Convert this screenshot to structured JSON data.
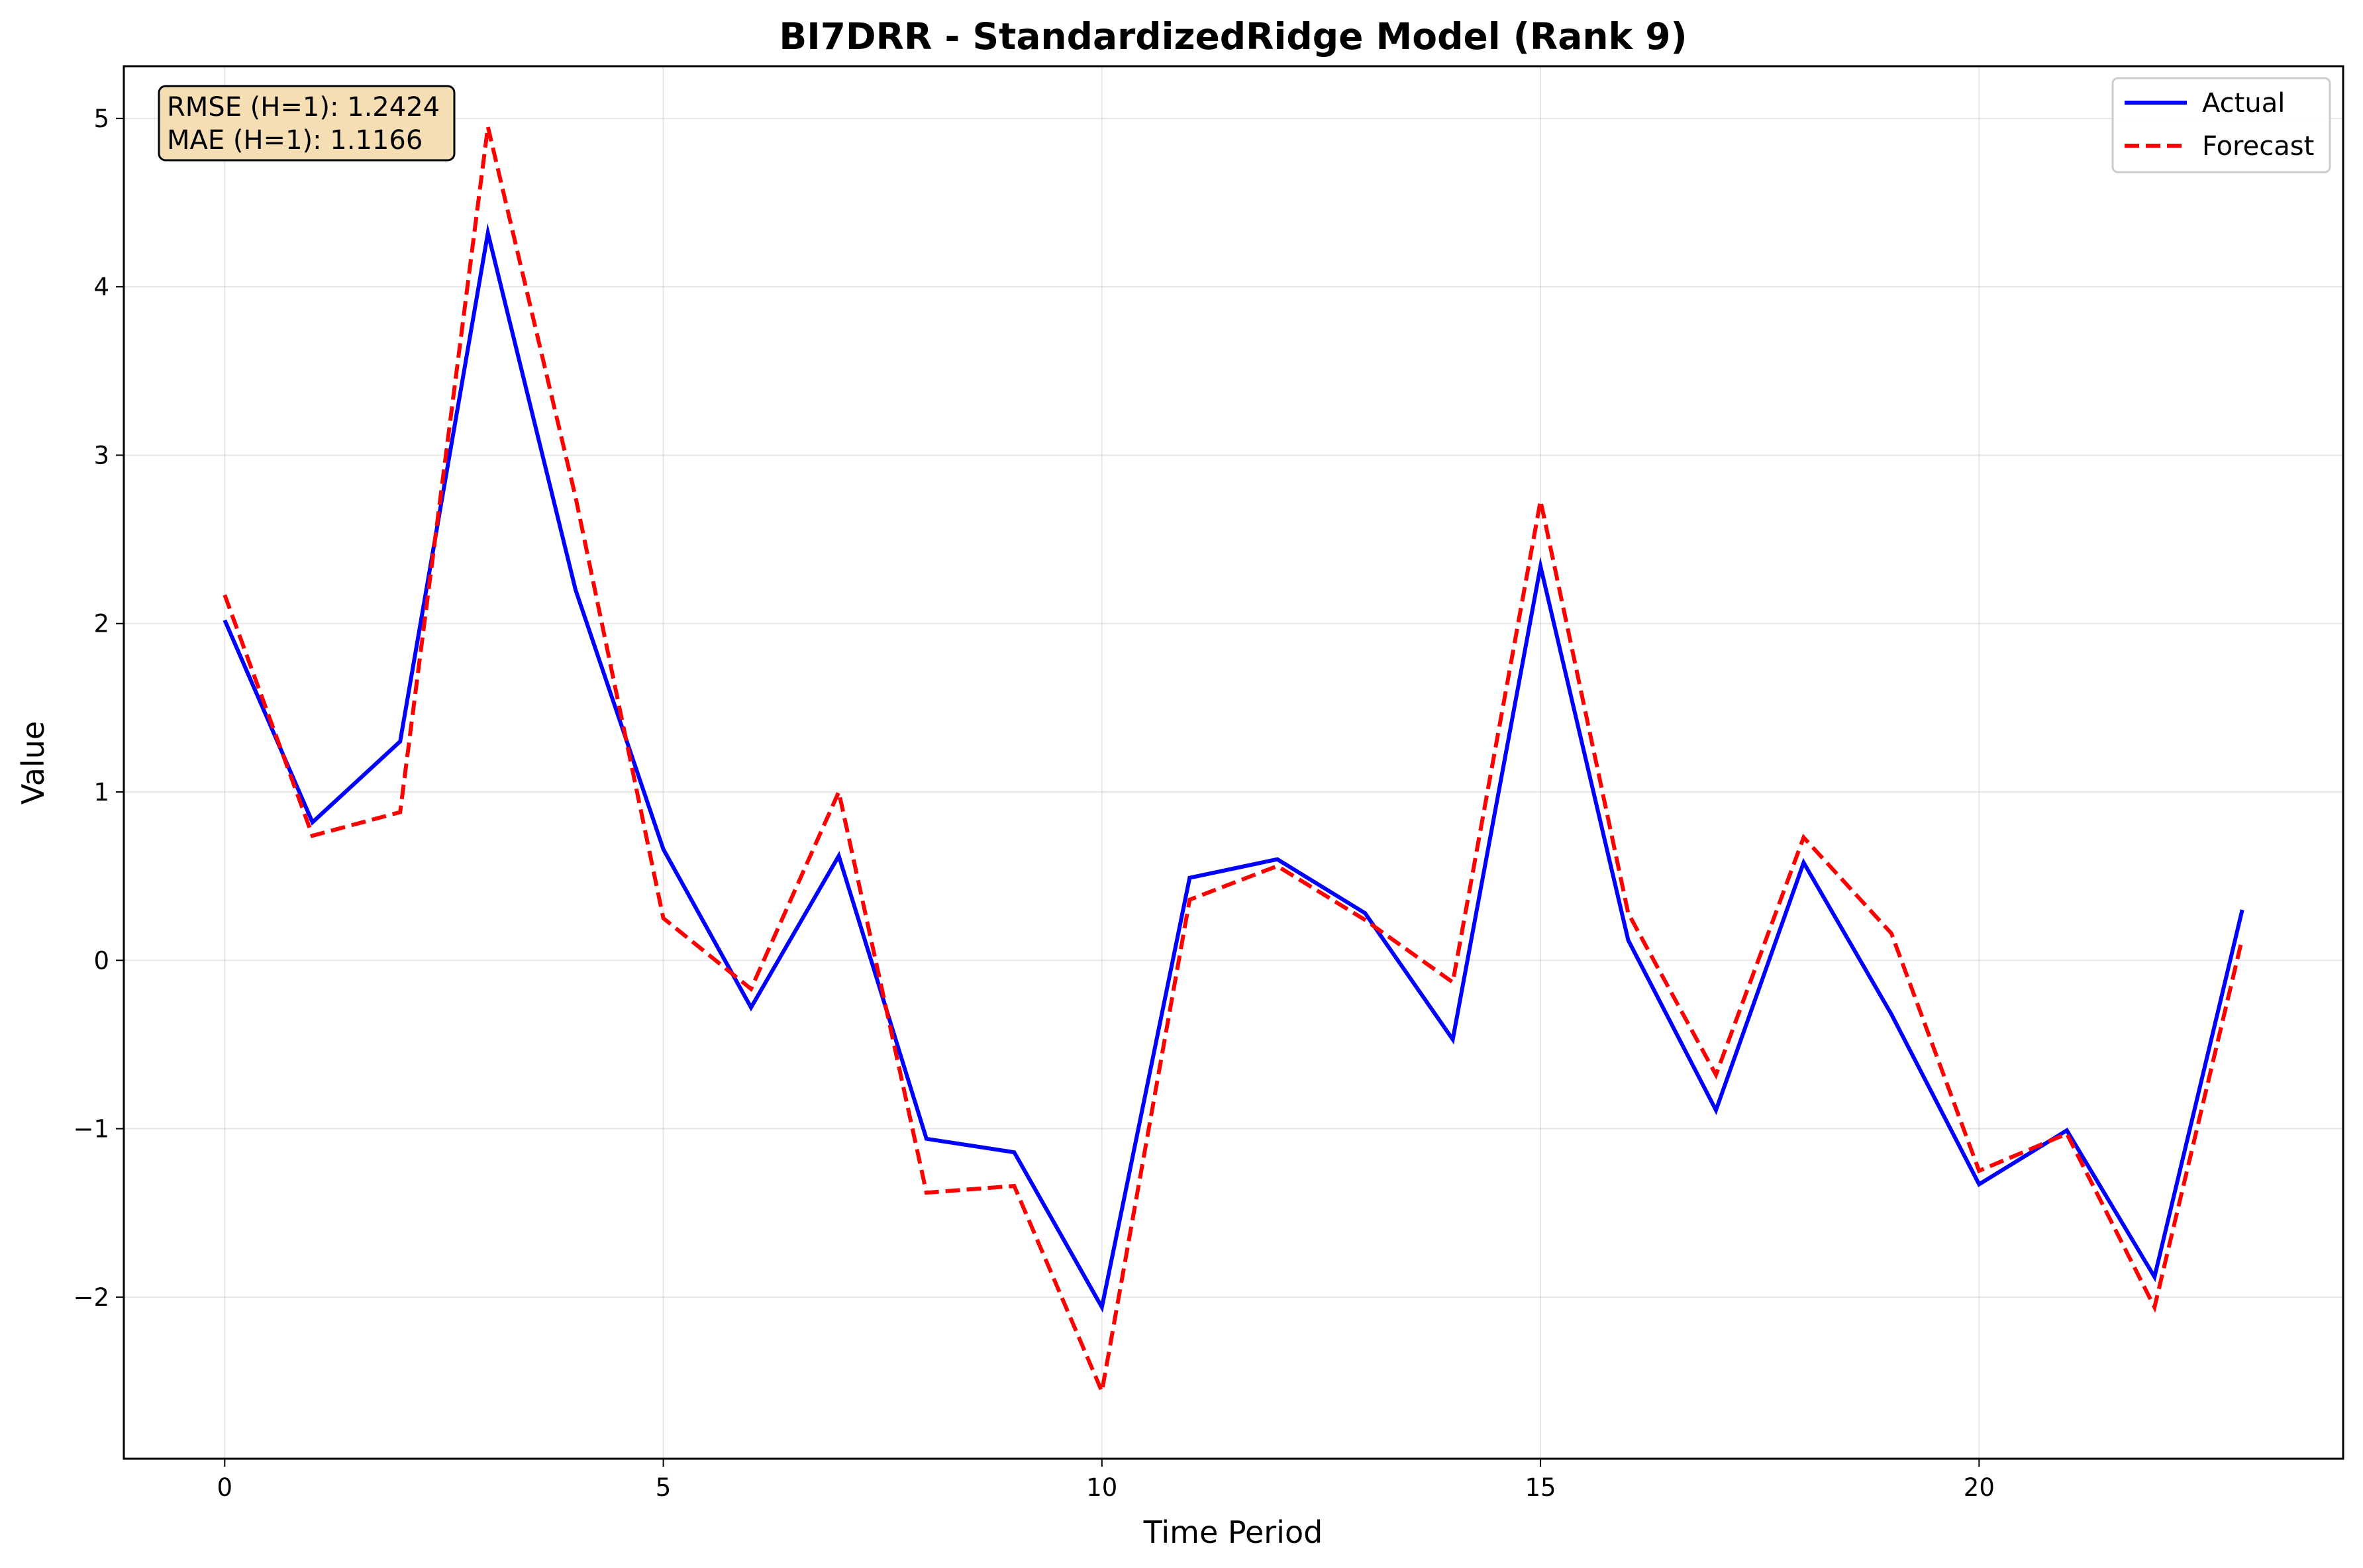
{
  "chart_data": {
    "type": "line",
    "title": "BI7DRR - StandardizedRidge Model (Rank 9)",
    "xlabel": "Time Period",
    "ylabel": "Value",
    "xlim": [
      -1.15,
      24.15
    ],
    "ylim": [
      -2.96,
      5.31
    ],
    "grid": true,
    "legend_position": "top-right",
    "x_ticks": [
      0,
      5,
      10,
      15,
      20
    ],
    "y_ticks": [
      -2,
      -1,
      0,
      1,
      2,
      3,
      4,
      5
    ],
    "x_tick_labels": [
      "0",
      "5",
      "10",
      "15",
      "20"
    ],
    "y_tick_labels": [
      "−2",
      "−1",
      "0",
      "1",
      "2",
      "3",
      "4",
      "5"
    ],
    "x": [
      0,
      1,
      2,
      3,
      4,
      5,
      6,
      7,
      8,
      9,
      10,
      11,
      12,
      13,
      14,
      15,
      16,
      17,
      18,
      19,
      20,
      21,
      22,
      23
    ],
    "series": [
      {
        "name": "Actual",
        "color": "#0000ff",
        "style": "solid",
        "values": [
          2.02,
          0.82,
          1.3,
          4.32,
          2.2,
          0.66,
          -0.28,
          0.62,
          -1.06,
          -1.14,
          -2.06,
          0.49,
          0.6,
          0.28,
          -0.47,
          2.34,
          0.12,
          -0.89,
          0.58,
          -0.32,
          -1.33,
          -1.01,
          -1.88,
          0.3
        ]
      },
      {
        "name": "Forecast",
        "color": "#ff0000",
        "style": "dashed",
        "values": [
          2.17,
          0.74,
          0.88,
          4.95,
          2.75,
          0.25,
          -0.17,
          1.0,
          -1.38,
          -1.34,
          -2.56,
          0.36,
          0.56,
          0.24,
          -0.13,
          2.73,
          0.28,
          -0.68,
          0.73,
          0.16,
          -1.25,
          -1.03,
          -2.06,
          0.13
        ]
      }
    ],
    "annotations": {
      "rmse_label": "RMSE (H=1): 1.2424",
      "mae_label": "MAE (H=1): 1.1166",
      "box_fill": "#f5deb3"
    }
  }
}
